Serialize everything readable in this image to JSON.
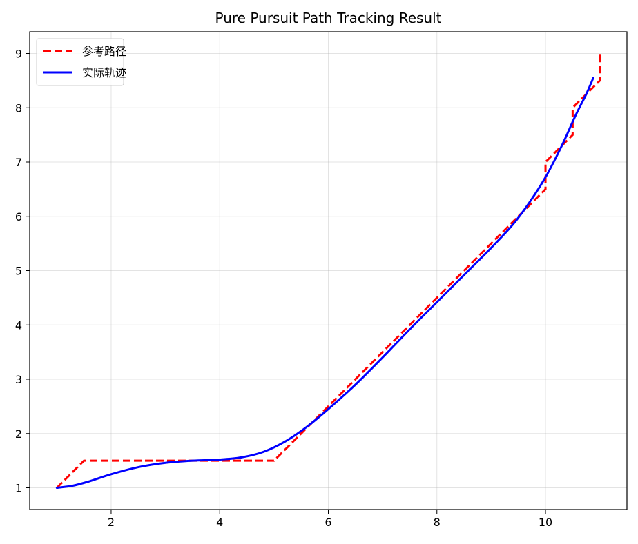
{
  "chart_data": {
    "type": "line",
    "title": "Pure Pursuit Path Tracking Result",
    "xlabel": "",
    "ylabel": "",
    "xlim": [
      0.5,
      11.5
    ],
    "ylim": [
      0.6,
      9.4
    ],
    "xticks": [
      2,
      4,
      6,
      8,
      10
    ],
    "yticks": [
      1,
      2,
      3,
      4,
      5,
      6,
      7,
      8,
      9
    ],
    "grid": true,
    "legend_position": "top-left",
    "series": [
      {
        "name": "参考路径",
        "style": "dashed",
        "color": "#ff0000",
        "x": [
          1.0,
          1.5,
          5.0,
          9.5,
          10.0,
          10.0,
          10.5,
          10.5,
          11.0,
          11.0
        ],
        "y": [
          1.0,
          1.5,
          1.5,
          6.0,
          6.5,
          7.0,
          7.5,
          8.0,
          8.5,
          9.0
        ]
      },
      {
        "name": "实际轨迹",
        "style": "solid",
        "color": "#0000ff",
        "x": [
          1.0,
          1.3,
          1.6,
          2.0,
          2.5,
          3.0,
          3.5,
          4.0,
          4.4,
          4.8,
          5.2,
          5.6,
          6.0,
          6.5,
          7.0,
          7.5,
          8.0,
          8.5,
          9.0,
          9.4,
          9.7,
          10.0,
          10.3,
          10.55,
          10.75,
          10.88
        ],
        "y": [
          1.0,
          1.04,
          1.12,
          1.25,
          1.38,
          1.46,
          1.5,
          1.52,
          1.56,
          1.66,
          1.85,
          2.12,
          2.45,
          2.9,
          3.4,
          3.92,
          4.42,
          4.92,
          5.42,
          5.85,
          6.25,
          6.72,
          7.3,
          7.85,
          8.25,
          8.55
        ]
      }
    ]
  }
}
